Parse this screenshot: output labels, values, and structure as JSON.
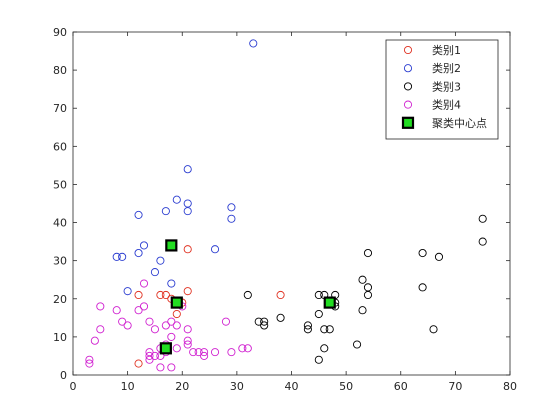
{
  "chart_data": {
    "type": "scatter",
    "title": "",
    "xlabel": "",
    "ylabel": "",
    "xlim": [
      0,
      80
    ],
    "ylim": [
      0,
      90
    ],
    "xticks": [
      0,
      10,
      20,
      30,
      40,
      50,
      60,
      70,
      80
    ],
    "yticks": [
      0,
      10,
      20,
      30,
      40,
      50,
      60,
      70,
      80,
      90
    ],
    "grid": false,
    "legend_position": "top-right",
    "series": [
      {
        "name": "类别1",
        "color": "#e03020",
        "marker": "open-circle",
        "points": [
          [
            12,
            3
          ],
          [
            12,
            21
          ],
          [
            16,
            21
          ],
          [
            17,
            21
          ],
          [
            18,
            20
          ],
          [
            19,
            16
          ],
          [
            20,
            19
          ],
          [
            21,
            22
          ],
          [
            21,
            33
          ],
          [
            38,
            21
          ]
        ]
      },
      {
        "name": "类别2",
        "color": "#2a3cd0",
        "marker": "open-circle",
        "points": [
          [
            8,
            31
          ],
          [
            9,
            31
          ],
          [
            10,
            22
          ],
          [
            12,
            32
          ],
          [
            12,
            42
          ],
          [
            13,
            34
          ],
          [
            15,
            27
          ],
          [
            16,
            30
          ],
          [
            17,
            43
          ],
          [
            18,
            24
          ],
          [
            18,
            34
          ],
          [
            19,
            46
          ],
          [
            21,
            43
          ],
          [
            21,
            45
          ],
          [
            21,
            54
          ],
          [
            26,
            33
          ],
          [
            29,
            41
          ],
          [
            29,
            44
          ],
          [
            33,
            87
          ]
        ]
      },
      {
        "name": "类别3",
        "color": "#000000",
        "marker": "open-circle",
        "points": [
          [
            32,
            21
          ],
          [
            34,
            14
          ],
          [
            35,
            13
          ],
          [
            35,
            14
          ],
          [
            38,
            15
          ],
          [
            43,
            12
          ],
          [
            43,
            13
          ],
          [
            45,
            4
          ],
          [
            45,
            16
          ],
          [
            45,
            21
          ],
          [
            46,
            7
          ],
          [
            46,
            12
          ],
          [
            46,
            21
          ],
          [
            47,
            12
          ],
          [
            48,
            18
          ],
          [
            48,
            19
          ],
          [
            48,
            21
          ],
          [
            52,
            8
          ],
          [
            53,
            17
          ],
          [
            53,
            25
          ],
          [
            54,
            21
          ],
          [
            54,
            23
          ],
          [
            54,
            32
          ],
          [
            64,
            23
          ],
          [
            64,
            32
          ],
          [
            66,
            12
          ],
          [
            67,
            31
          ],
          [
            75,
            35
          ],
          [
            75,
            41
          ]
        ]
      },
      {
        "name": "类别4",
        "color": "#d020d0",
        "marker": "open-circle",
        "points": [
          [
            3,
            3
          ],
          [
            3,
            4
          ],
          [
            4,
            9
          ],
          [
            5,
            12
          ],
          [
            5,
            18
          ],
          [
            8,
            17
          ],
          [
            9,
            14
          ],
          [
            10,
            13
          ],
          [
            12,
            17
          ],
          [
            13,
            18
          ],
          [
            13,
            24
          ],
          [
            14,
            4
          ],
          [
            14,
            5
          ],
          [
            14,
            6
          ],
          [
            14,
            14
          ],
          [
            15,
            5
          ],
          [
            15,
            12
          ],
          [
            16,
            2
          ],
          [
            16,
            5
          ],
          [
            16,
            7
          ],
          [
            17,
            6
          ],
          [
            17,
            8
          ],
          [
            17,
            13
          ],
          [
            18,
            2
          ],
          [
            18,
            10
          ],
          [
            18,
            14
          ],
          [
            19,
            7
          ],
          [
            19,
            13
          ],
          [
            20,
            18
          ],
          [
            21,
            8
          ],
          [
            21,
            9
          ],
          [
            21,
            12
          ],
          [
            22,
            6
          ],
          [
            23,
            6
          ],
          [
            24,
            5
          ],
          [
            24,
            6
          ],
          [
            26,
            6
          ],
          [
            28,
            14
          ],
          [
            29,
            6
          ],
          [
            31,
            7
          ],
          [
            32,
            7
          ]
        ]
      },
      {
        "name": "聚类中心点",
        "color": "#22dd22",
        "edge_color": "#000000",
        "marker": "filled-square",
        "points": [
          [
            17,
            7
          ],
          [
            18,
            34
          ],
          [
            19,
            19
          ],
          [
            47,
            19
          ]
        ]
      }
    ]
  }
}
